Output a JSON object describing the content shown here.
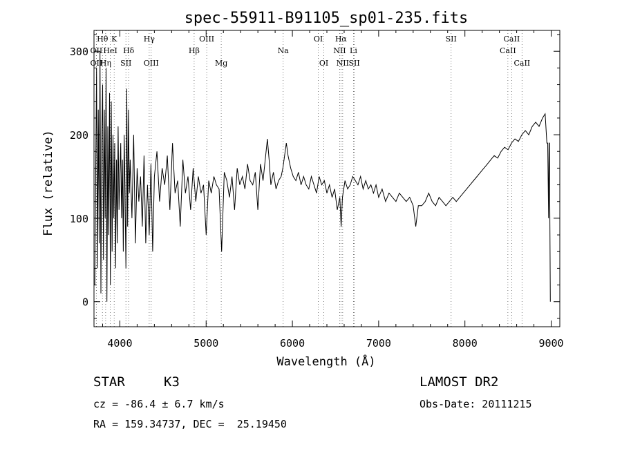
{
  "chart_data": {
    "type": "line",
    "title": "spec-55911-B91105_sp01-235.fits",
    "xlabel": "Wavelength (Å)",
    "ylabel": "Flux (relative)",
    "xlim": [
      3700,
      9100
    ],
    "ylim": [
      -30,
      325
    ],
    "x_ticks": [
      4000,
      5000,
      6000,
      7000,
      8000,
      9000
    ],
    "y_ticks": [
      0,
      100,
      200,
      300
    ],
    "grid": false,
    "line_color": "#000000",
    "marker_color": "#555555",
    "series": [
      {
        "x": [
          3710,
          3720,
          3730,
          3740,
          3750,
          3760,
          3770,
          3780,
          3790,
          3800,
          3810,
          3820,
          3830,
          3840,
          3850,
          3860,
          3870,
          3880,
          3890,
          3900,
          3910,
          3920,
          3930,
          3940,
          3950,
          3960,
          3970,
          3980,
          3990,
          4000,
          4010,
          4020,
          4030,
          4040,
          4050,
          4060,
          4070,
          4080,
          4090,
          4100,
          4110,
          4120,
          4140,
          4160,
          4180,
          4200,
          4220,
          4240,
          4260,
          4280,
          4300,
          4320,
          4340,
          4360,
          4380,
          4400,
          4430,
          4460,
          4490,
          4520,
          4550,
          4580,
          4610,
          4640,
          4670,
          4700,
          4730,
          4760,
          4790,
          4820,
          4850,
          4880,
          4910,
          4940,
          4970,
          5000,
          5030,
          5060,
          5090,
          5120,
          5150,
          5180,
          5210,
          5240,
          5270,
          5300,
          5330,
          5360,
          5390,
          5420,
          5450,
          5480,
          5510,
          5540,
          5570,
          5600,
          5630,
          5660,
          5690,
          5710,
          5730,
          5750,
          5780,
          5810,
          5840,
          5870,
          5890,
          5910,
          5930,
          5950,
          5980,
          6010,
          6040,
          6070,
          6100,
          6130,
          6160,
          6190,
          6220,
          6250,
          6280,
          6310,
          6340,
          6370,
          6400,
          6430,
          6460,
          6490,
          6520,
          6550,
          6565,
          6580,
          6610,
          6640,
          6670,
          6700,
          6730,
          6760,
          6790,
          6820,
          6850,
          6880,
          6910,
          6940,
          6970,
          7000,
          7040,
          7080,
          7120,
          7160,
          7200,
          7240,
          7280,
          7320,
          7360,
          7400,
          7430,
          7460,
          7500,
          7540,
          7580,
          7620,
          7660,
          7700,
          7740,
          7780,
          7820,
          7860,
          7900,
          7940,
          7980,
          8020,
          8060,
          8100,
          8140,
          8180,
          8220,
          8260,
          8300,
          8340,
          8380,
          8420,
          8460,
          8500,
          8540,
          8580,
          8620,
          8660,
          8700,
          8740,
          8780,
          8820,
          8860,
          8900,
          8930,
          8950,
          8960,
          8970,
          8975,
          8980,
          8990
        ],
        "y": [
          20,
          160,
          280,
          40,
          230,
          70,
          300,
          10,
          190,
          260,
          50,
          230,
          100,
          280,
          0,
          210,
          80,
          250,
          20,
          240,
          60,
          200,
          100,
          190,
          40,
          170,
          70,
          210,
          110,
          150,
          190,
          100,
          170,
          60,
          200,
          130,
          40,
          255,
          90,
          230,
          130,
          170,
          100,
          200,
          70,
          160,
          120,
          150,
          90,
          175,
          70,
          140,
          80,
          165,
          60,
          150,
          180,
          120,
          160,
          140,
          175,
          110,
          190,
          130,
          145,
          90,
          170,
          130,
          150,
          110,
          160,
          120,
          150,
          130,
          140,
          80,
          145,
          130,
          150,
          140,
          135,
          60,
          155,
          145,
          125,
          150,
          110,
          160,
          140,
          150,
          135,
          165,
          145,
          140,
          155,
          110,
          165,
          145,
          175,
          195,
          170,
          140,
          155,
          135,
          145,
          150,
          160,
          175,
          190,
          175,
          160,
          150,
          145,
          155,
          140,
          150,
          140,
          135,
          150,
          140,
          130,
          150,
          140,
          145,
          130,
          140,
          125,
          135,
          110,
          125,
          90,
          125,
          145,
          135,
          140,
          150,
          145,
          140,
          150,
          135,
          145,
          135,
          140,
          130,
          140,
          125,
          135,
          120,
          130,
          125,
          120,
          130,
          125,
          120,
          125,
          115,
          90,
          115,
          115,
          120,
          130,
          120,
          115,
          125,
          120,
          115,
          120,
          125,
          120,
          125,
          130,
          135,
          140,
          145,
          150,
          155,
          160,
          165,
          170,
          175,
          172,
          180,
          185,
          182,
          190,
          195,
          192,
          200,
          205,
          200,
          210,
          215,
          210,
          220,
          225,
          190,
          190,
          100,
          190,
          190,
          0
        ]
      }
    ],
    "lines": [
      {
        "label": "Hθ",
        "x": 3798,
        "row": 0
      },
      {
        "label": "K",
        "x": 3934,
        "row": 0
      },
      {
        "label": "Hγ",
        "x": 4340,
        "row": 0
      },
      {
        "label": "OIII",
        "x": 5007,
        "row": 0
      },
      {
        "label": "OI",
        "x": 6300,
        "row": 0
      },
      {
        "label": "Hα",
        "x": 6563,
        "row": 0
      },
      {
        "label": "SII",
        "x": 7840,
        "row": 0
      },
      {
        "label": "CaII",
        "x": 8542,
        "row": 0
      },
      {
        "label": "OII",
        "x": 3727,
        "row": 1
      },
      {
        "label": "HeI",
        "x": 3889,
        "row": 1
      },
      {
        "label": "Hδ",
        "x": 4102,
        "row": 1
      },
      {
        "label": "Hβ",
        "x": 4861,
        "row": 1
      },
      {
        "label": "Na",
        "x": 5893,
        "row": 1
      },
      {
        "label": "NII",
        "x": 6548,
        "row": 1
      },
      {
        "label": "Li",
        "x": 6708,
        "row": 1
      },
      {
        "label": "CaII",
        "x": 8498,
        "row": 1
      },
      {
        "label": "OII",
        "x": 3727,
        "row": 2
      },
      {
        "label": "Hη",
        "x": 3835,
        "row": 2
      },
      {
        "label": "SII",
        "x": 4070,
        "row": 2
      },
      {
        "label": "OIII",
        "x": 4363,
        "row": 2
      },
      {
        "label": "Mg",
        "x": 5175,
        "row": 2
      },
      {
        "label": "OI",
        "x": 6364,
        "row": 2
      },
      {
        "label": "NII",
        "x": 6583,
        "row": 2
      },
      {
        "label": "SII",
        "x": 6717,
        "row": 2
      },
      {
        "label": "CaII",
        "x": 8662,
        "row": 2
      }
    ]
  },
  "info": {
    "object_class": "STAR",
    "subclass": "K3",
    "survey": "LAMOST DR2",
    "cz": "cz = -86.4 ± 6.7 km/s",
    "obs_date": "Obs-Date: 20111215",
    "coords": "RA = 159.34737, DEC =  25.19450"
  }
}
